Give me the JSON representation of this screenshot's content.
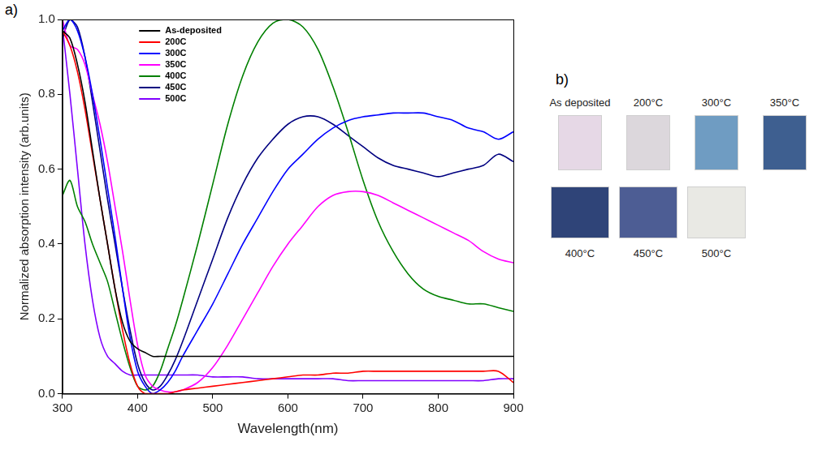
{
  "chart_data": {
    "type": "line",
    "panel": "a)",
    "x_label": "Wavelength(nm)",
    "y_label": "Normalized absorption intensity (arb.units)",
    "x": [
      300,
      310,
      320,
      330,
      340,
      350,
      360,
      370,
      380,
      390,
      400,
      410,
      420,
      430,
      440,
      450,
      460,
      480,
      500,
      520,
      540,
      560,
      580,
      600,
      620,
      640,
      660,
      680,
      700,
      720,
      740,
      760,
      780,
      800,
      820,
      840,
      860,
      880,
      900
    ],
    "series": [
      {
        "name": "As-deposited",
        "color": "#000000",
        "values": [
          0.97,
          0.95,
          0.88,
          0.78,
          0.65,
          0.52,
          0.4,
          0.28,
          0.19,
          0.14,
          0.12,
          0.11,
          0.1,
          0.1,
          0.1,
          0.1,
          0.1,
          0.1,
          0.1,
          0.1,
          0.1,
          0.1,
          0.1,
          0.1,
          0.1,
          0.1,
          0.1,
          0.1,
          0.1,
          0.1,
          0.1,
          0.1,
          0.1,
          0.1,
          0.1,
          0.1,
          0.1,
          0.1,
          0.1
        ]
      },
      {
        "name": "200C",
        "color": "#ff0000",
        "values": [
          0.97,
          0.93,
          0.86,
          0.76,
          0.64,
          0.52,
          0.4,
          0.28,
          0.17,
          0.08,
          0.02,
          0.0,
          0.0,
          0.0,
          0.0,
          0.005,
          0.01,
          0.015,
          0.02,
          0.025,
          0.03,
          0.035,
          0.04,
          0.045,
          0.05,
          0.05,
          0.055,
          0.055,
          0.06,
          0.06,
          0.06,
          0.06,
          0.06,
          0.06,
          0.06,
          0.06,
          0.06,
          0.06,
          0.03
        ]
      },
      {
        "name": "300C",
        "color": "#0000ff",
        "values": [
          0.97,
          1.0,
          0.97,
          0.9,
          0.8,
          0.68,
          0.55,
          0.42,
          0.28,
          0.15,
          0.06,
          0.02,
          0.0,
          0.01,
          0.03,
          0.06,
          0.1,
          0.17,
          0.24,
          0.32,
          0.4,
          0.47,
          0.54,
          0.6,
          0.64,
          0.68,
          0.71,
          0.73,
          0.74,
          0.745,
          0.75,
          0.75,
          0.75,
          0.74,
          0.73,
          0.71,
          0.7,
          0.68,
          0.7
        ]
      },
      {
        "name": "350C",
        "color": "#ff00ff",
        "values": [
          1.0,
          0.93,
          0.92,
          0.88,
          0.8,
          0.72,
          0.62,
          0.5,
          0.38,
          0.25,
          0.13,
          0.05,
          0.02,
          0.01,
          0.005,
          0.005,
          0.01,
          0.03,
          0.07,
          0.13,
          0.2,
          0.27,
          0.34,
          0.4,
          0.45,
          0.5,
          0.53,
          0.54,
          0.54,
          0.53,
          0.51,
          0.49,
          0.47,
          0.45,
          0.43,
          0.41,
          0.38,
          0.36,
          0.35
        ]
      },
      {
        "name": "400C",
        "color": "#008000",
        "values": [
          0.53,
          0.57,
          0.5,
          0.46,
          0.4,
          0.35,
          0.3,
          0.22,
          0.14,
          0.07,
          0.02,
          0.01,
          0.02,
          0.06,
          0.12,
          0.18,
          0.25,
          0.4,
          0.56,
          0.72,
          0.85,
          0.94,
          0.99,
          1.0,
          0.98,
          0.92,
          0.82,
          0.7,
          0.57,
          0.46,
          0.38,
          0.32,
          0.28,
          0.26,
          0.25,
          0.24,
          0.24,
          0.23,
          0.22
        ]
      },
      {
        "name": "450C",
        "color": "#000080",
        "values": [
          0.95,
          1.0,
          0.98,
          0.9,
          0.78,
          0.65,
          0.52,
          0.4,
          0.28,
          0.17,
          0.08,
          0.03,
          0.01,
          0.02,
          0.05,
          0.09,
          0.14,
          0.25,
          0.36,
          0.47,
          0.56,
          0.63,
          0.68,
          0.72,
          0.74,
          0.74,
          0.72,
          0.69,
          0.66,
          0.63,
          0.61,
          0.6,
          0.59,
          0.58,
          0.59,
          0.6,
          0.61,
          0.64,
          0.62
        ]
      },
      {
        "name": "500C",
        "color": "#8000ff",
        "values": [
          0.98,
          0.8,
          0.6,
          0.4,
          0.25,
          0.15,
          0.1,
          0.08,
          0.06,
          0.05,
          0.05,
          0.05,
          0.05,
          0.05,
          0.05,
          0.05,
          0.05,
          0.05,
          0.045,
          0.045,
          0.045,
          0.04,
          0.04,
          0.04,
          0.04,
          0.04,
          0.04,
          0.035,
          0.035,
          0.035,
          0.035,
          0.035,
          0.035,
          0.035,
          0.035,
          0.035,
          0.035,
          0.04,
          0.04
        ]
      }
    ],
    "xlim": [
      300,
      900
    ],
    "xticks": [
      300,
      400,
      500,
      600,
      700,
      800,
      900
    ],
    "ylim": [
      0,
      1
    ],
    "yticks": [
      {
        "value": 0,
        "label": "0.0"
      },
      0.2,
      0.4,
      0.6,
      0.8,
      {
        "value": 1,
        "label": "1.0"
      }
    ],
    "grid": false,
    "legend": "upper left"
  },
  "photo": {
    "panel": "b)",
    "rows": [
      [
        {
          "label": "As deposited",
          "color": "#e6d8e6"
        },
        {
          "label": "200°C",
          "color": "#dcd7dc"
        },
        {
          "label": "300°C",
          "color": "#6f9cc2"
        },
        {
          "label": "350°C",
          "color": "#3e5f90"
        }
      ],
      [
        {
          "label": "400°C",
          "color": "#2f4478"
        },
        {
          "label": "450°C",
          "color": "#4d5d94"
        },
        {
          "label": "500°C",
          "color": "#e9e9e4"
        }
      ]
    ]
  }
}
